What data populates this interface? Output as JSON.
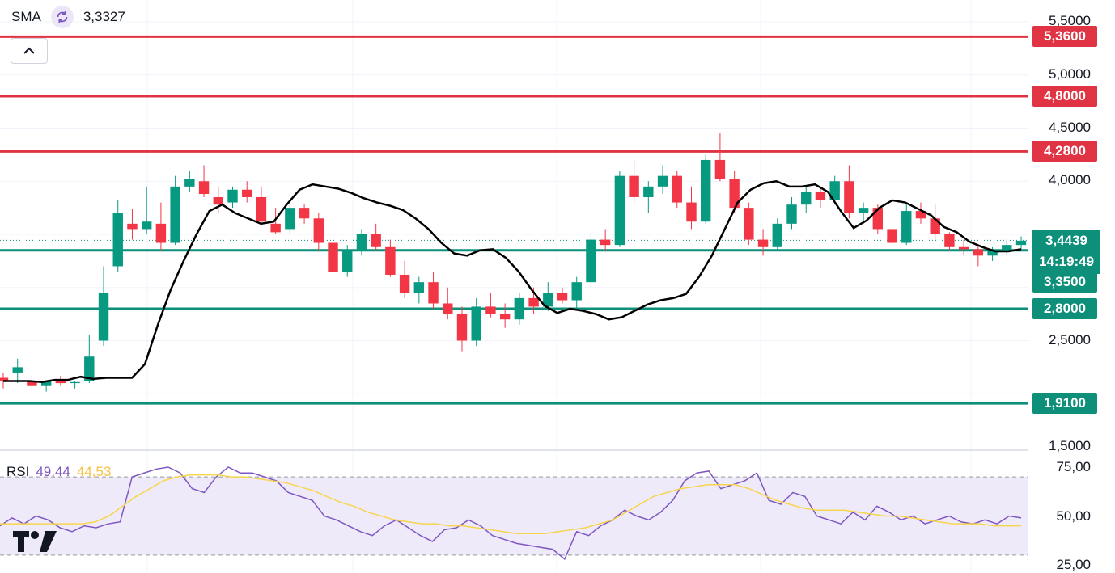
{
  "indicator": {
    "name": "SMA",
    "value": "3,3327",
    "icon": "refresh-icon"
  },
  "collapse_icon": "chevron-up-icon",
  "price_axis": {
    "ticks": [
      "5,5000",
      "5,0000",
      "4,5000",
      "4,0000",
      "2,5000",
      "1,5000"
    ]
  },
  "levels": {
    "resistance": [
      {
        "label": "5,3600",
        "value": 5.36
      },
      {
        "label": "4,8000",
        "value": 4.8
      },
      {
        "label": "4,2800",
        "value": 4.28
      }
    ],
    "support": [
      {
        "label": "3,3500",
        "value": 3.35
      },
      {
        "label": "2,8000",
        "value": 2.8
      },
      {
        "label": "1,9100",
        "value": 1.91
      }
    ]
  },
  "current": {
    "price": "3,4439",
    "countdown": "14:19:49"
  },
  "rsi": {
    "name": "RSI",
    "value": "49,44",
    "ma_value": "44,53",
    "ticks": [
      "75,00",
      "50,00",
      "25,00"
    ],
    "upper_band": 70,
    "middle": 50,
    "lower_band": 30
  },
  "colors": {
    "up": "#089981",
    "down": "#f23645",
    "support": "#0e8f7a",
    "resistance": "#e03444",
    "sma": "#000000",
    "rsi": "#7e57c2",
    "rsi_ma": "#f7d54a"
  },
  "chart_data": {
    "type": "candlestick",
    "sma_line": [
      2.12,
      2.12,
      2.12,
      2.11,
      2.13,
      2.13,
      2.16,
      2.14,
      2.15,
      2.15,
      2.15,
      2.28,
      2.65,
      2.98,
      3.25,
      3.5,
      3.72,
      3.78,
      3.7,
      3.65,
      3.6,
      3.62,
      3.78,
      3.92,
      3.97,
      3.95,
      3.93,
      3.89,
      3.84,
      3.8,
      3.77,
      3.73,
      3.65,
      3.55,
      3.42,
      3.32,
      3.3,
      3.35,
      3.36,
      3.28,
      3.15,
      2.98,
      2.83,
      2.76,
      2.8,
      2.78,
      2.75,
      2.7,
      2.72,
      2.78,
      2.84,
      2.88,
      2.9,
      2.94,
      3.1,
      3.3,
      3.55,
      3.8,
      3.92,
      3.98,
      4.0,
      3.95,
      3.95,
      3.97,
      3.9,
      3.72,
      3.56,
      3.63,
      3.75,
      3.82,
      3.8,
      3.74,
      3.68,
      3.57,
      3.52,
      3.43,
      3.38,
      3.34,
      3.34,
      3.36
    ],
    "candles": [
      [
        2.15,
        2.2,
        2.05,
        2.12
      ],
      [
        2.2,
        2.33,
        2.1,
        2.25
      ],
      [
        2.12,
        2.17,
        2.03,
        2.08
      ],
      [
        2.08,
        2.12,
        2.02,
        2.12
      ],
      [
        2.12,
        2.17,
        2.08,
        2.1
      ],
      [
        2.1,
        2.12,
        2.05,
        2.11
      ],
      [
        2.12,
        2.55,
        2.1,
        2.35
      ],
      [
        2.5,
        3.2,
        2.45,
        2.95
      ],
      [
        3.2,
        3.82,
        3.15,
        3.7
      ],
      [
        3.6,
        3.74,
        3.45,
        3.55
      ],
      [
        3.55,
        3.95,
        3.5,
        3.62
      ],
      [
        3.6,
        3.8,
        3.35,
        3.42
      ],
      [
        3.42,
        4.05,
        3.4,
        3.95
      ],
      [
        3.95,
        4.1,
        3.9,
        4.02
      ],
      [
        4.0,
        4.15,
        3.85,
        3.88
      ],
      [
        3.85,
        3.95,
        3.7,
        3.78
      ],
      [
        3.8,
        3.95,
        3.75,
        3.92
      ],
      [
        3.92,
        4.0,
        3.8,
        3.85
      ],
      [
        3.85,
        3.95,
        3.6,
        3.62
      ],
      [
        3.6,
        3.75,
        3.5,
        3.52
      ],
      [
        3.55,
        3.8,
        3.5,
        3.75
      ],
      [
        3.75,
        3.78,
        3.6,
        3.65
      ],
      [
        3.65,
        3.7,
        3.35,
        3.42
      ],
      [
        3.42,
        3.5,
        3.1,
        3.15
      ],
      [
        3.15,
        3.4,
        3.1,
        3.35
      ],
      [
        3.35,
        3.55,
        3.3,
        3.5
      ],
      [
        3.5,
        3.6,
        3.35,
        3.38
      ],
      [
        3.38,
        3.45,
        3.1,
        3.12
      ],
      [
        3.12,
        3.25,
        2.9,
        2.95
      ],
      [
        2.95,
        3.1,
        2.85,
        3.05
      ],
      [
        3.05,
        3.15,
        2.8,
        2.85
      ],
      [
        2.85,
        3.0,
        2.7,
        2.75
      ],
      [
        2.75,
        2.82,
        2.4,
        2.5
      ],
      [
        2.5,
        2.9,
        2.45,
        2.82
      ],
      [
        2.82,
        2.95,
        2.72,
        2.75
      ],
      [
        2.75,
        2.85,
        2.62,
        2.7
      ],
      [
        2.7,
        2.95,
        2.65,
        2.9
      ],
      [
        2.9,
        3.0,
        2.75,
        2.82
      ],
      [
        2.82,
        3.05,
        2.78,
        2.95
      ],
      [
        2.95,
        3.0,
        2.85,
        2.88
      ],
      [
        2.88,
        3.1,
        2.8,
        3.05
      ],
      [
        3.05,
        3.5,
        3.0,
        3.45
      ],
      [
        3.45,
        3.55,
        3.35,
        3.4
      ],
      [
        3.4,
        4.1,
        3.38,
        4.05
      ],
      [
        4.05,
        4.2,
        3.8,
        3.85
      ],
      [
        3.85,
        4.0,
        3.7,
        3.95
      ],
      [
        3.95,
        4.15,
        3.88,
        4.05
      ],
      [
        4.05,
        4.1,
        3.75,
        3.8
      ],
      [
        3.8,
        3.95,
        3.55,
        3.62
      ],
      [
        3.62,
        4.25,
        3.6,
        4.2
      ],
      [
        4.2,
        4.45,
        4.0,
        4.02
      ],
      [
        4.02,
        4.1,
        3.7,
        3.75
      ],
      [
        3.75,
        3.8,
        3.4,
        3.45
      ],
      [
        3.45,
        3.55,
        3.3,
        3.38
      ],
      [
        3.38,
        3.65,
        3.35,
        3.6
      ],
      [
        3.6,
        3.85,
        3.55,
        3.78
      ],
      [
        3.78,
        3.95,
        3.7,
        3.9
      ],
      [
        3.9,
        3.95,
        3.75,
        3.82
      ],
      [
        3.82,
        4.05,
        3.78,
        4.0
      ],
      [
        4.0,
        4.15,
        3.65,
        3.7
      ],
      [
        3.7,
        3.8,
        3.6,
        3.75
      ],
      [
        3.75,
        3.78,
        3.5,
        3.55
      ],
      [
        3.55,
        3.6,
        3.38,
        3.42
      ],
      [
        3.42,
        3.8,
        3.4,
        3.72
      ],
      [
        3.72,
        3.8,
        3.6,
        3.65
      ],
      [
        3.65,
        3.78,
        3.45,
        3.5
      ],
      [
        3.5,
        3.52,
        3.35,
        3.38
      ],
      [
        3.38,
        3.45,
        3.3,
        3.36
      ],
      [
        3.36,
        3.4,
        3.2,
        3.3
      ],
      [
        3.3,
        3.38,
        3.25,
        3.35
      ],
      [
        3.35,
        3.45,
        3.3,
        3.4
      ],
      [
        3.4,
        3.48,
        3.36,
        3.44
      ]
    ],
    "rsi_line": [
      45,
      49,
      46,
      50,
      48,
      44,
      42,
      45,
      44,
      46,
      47,
      70,
      72,
      74,
      75,
      72,
      64,
      62,
      70,
      75,
      72,
      72,
      70,
      68,
      62,
      60,
      58,
      50,
      48,
      45,
      42,
      40,
      45,
      48,
      44,
      40,
      37,
      43,
      44,
      48,
      45,
      40,
      38,
      36,
      35,
      34,
      33,
      28,
      42,
      40,
      45,
      48,
      53,
      50,
      48,
      52,
      58,
      68,
      72,
      73,
      64,
      66,
      68,
      72,
      58,
      56,
      62,
      60,
      50,
      48,
      46,
      52,
      48,
      55,
      52,
      48,
      50,
      46,
      48,
      50,
      47,
      46,
      48,
      46,
      50,
      49
    ],
    "rsi_ma_line": [
      46,
      46,
      46,
      46,
      46,
      46,
      46,
      47,
      50,
      55,
      60,
      64,
      68,
      70,
      71,
      71,
      71,
      70,
      70,
      69,
      68,
      67,
      65,
      63,
      60,
      57,
      55,
      52,
      50,
      48,
      47,
      46,
      46,
      45,
      45,
      44,
      43,
      42,
      41,
      41,
      41,
      42,
      43,
      44,
      46,
      48,
      52,
      56,
      60,
      62,
      64,
      65,
      66,
      66,
      66,
      64,
      61,
      58,
      56,
      54,
      53,
      53,
      53,
      52,
      51,
      50,
      50,
      49,
      48,
      47,
      46,
      46,
      46,
      45,
      45,
      45
    ],
    "price_range": [
      1.4,
      5.6
    ],
    "rsi_range": [
      20,
      80
    ]
  }
}
